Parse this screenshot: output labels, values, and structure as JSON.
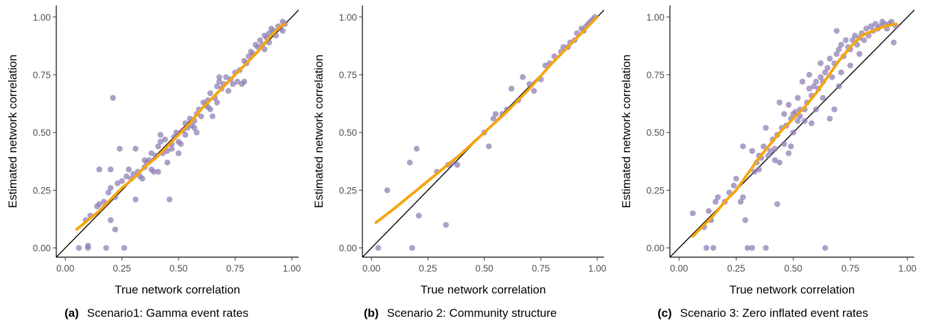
{
  "chart_data": [
    {
      "type": "scatter",
      "caption_letter": "(a)",
      "caption": "Scenario1: Gamma event rates",
      "xlabel": "True network correlation",
      "ylabel": "Estimated network correlation",
      "xlim": [
        -0.04,
        1.03
      ],
      "ylim": [
        -0.04,
        1.05
      ],
      "xticks": [
        "0.00",
        "0.25",
        "0.50",
        "0.75",
        "1.00"
      ],
      "yticks": [
        "0.00",
        "0.25",
        "0.50",
        "0.75",
        "1.00"
      ],
      "grid": false,
      "point_color": "#8e7cb3",
      "smooth_color": "#f5a511",
      "identity_line": true,
      "points": [
        [
          0.06,
          0
        ],
        [
          0.1,
          0
        ],
        [
          0.1,
          0.01
        ],
        [
          0.18,
          0
        ],
        [
          0.26,
          0
        ],
        [
          0.2,
          0.12
        ],
        [
          0.22,
          0.08
        ],
        [
          0.09,
          0.12
        ],
        [
          0.11,
          0.14
        ],
        [
          0.14,
          0.18
        ],
        [
          0.15,
          0.19
        ],
        [
          0.17,
          0.2
        ],
        [
          0.19,
          0.24
        ],
        [
          0.2,
          0.26
        ],
        [
          0.22,
          0.22
        ],
        [
          0.23,
          0.28
        ],
        [
          0.15,
          0.34
        ],
        [
          0.2,
          0.34
        ],
        [
          0.24,
          0.43
        ],
        [
          0.21,
          0.65
        ],
        [
          0.25,
          0.29
        ],
        [
          0.27,
          0.31
        ],
        [
          0.28,
          0.34
        ],
        [
          0.29,
          0.3
        ],
        [
          0.3,
          0.32
        ],
        [
          0.31,
          0.21
        ],
        [
          0.31,
          0.43
        ],
        [
          0.32,
          0.33
        ],
        [
          0.33,
          0.31
        ],
        [
          0.34,
          0.3
        ],
        [
          0.35,
          0.35
        ],
        [
          0.36,
          0.37
        ],
        [
          0.37,
          0.38
        ],
        [
          0.38,
          0.41
        ],
        [
          0.38,
          0.34
        ],
        [
          0.39,
          0.33
        ],
        [
          0.4,
          0.4
        ],
        [
          0.41,
          0.33
        ],
        [
          0.41,
          0.44
        ],
        [
          0.42,
          0.46
        ],
        [
          0.42,
          0.49
        ],
        [
          0.43,
          0.41
        ],
        [
          0.44,
          0.47
        ],
        [
          0.45,
          0.42
        ],
        [
          0.45,
          0.37
        ],
        [
          0.46,
          0.21
        ],
        [
          0.47,
          0.45
        ],
        [
          0.48,
          0.48
        ],
        [
          0.49,
          0.5
        ],
        [
          0.5,
          0.41
        ],
        [
          0.5,
          0.46
        ],
        [
          0.51,
          0.45
        ],
        [
          0.52,
          0.51
        ],
        [
          0.53,
          0.54
        ],
        [
          0.54,
          0.52
        ],
        [
          0.55,
          0.56
        ],
        [
          0.56,
          0.53
        ],
        [
          0.57,
          0.55
        ],
        [
          0.58,
          0.5
        ],
        [
          0.58,
          0.58
        ],
        [
          0.59,
          0.6
        ],
        [
          0.6,
          0.57
        ],
        [
          0.61,
          0.63
        ],
        [
          0.62,
          0.62
        ],
        [
          0.63,
          0.61
        ],
        [
          0.64,
          0.67
        ],
        [
          0.64,
          0.6
        ],
        [
          0.65,
          0.57
        ],
        [
          0.66,
          0.65
        ],
        [
          0.67,
          0.7
        ],
        [
          0.67,
          0.63
        ],
        [
          0.68,
          0.72
        ],
        [
          0.69,
          0.69
        ],
        [
          0.7,
          0.71
        ],
        [
          0.71,
          0.74
        ],
        [
          0.72,
          0.68
        ],
        [
          0.73,
          0.73
        ],
        [
          0.74,
          0.71
        ],
        [
          0.75,
          0.76
        ],
        [
          0.76,
          0.72
        ],
        [
          0.77,
          0.77
        ],
        [
          0.78,
          0.71
        ],
        [
          0.79,
          0.72
        ],
        [
          0.79,
          0.81
        ],
        [
          0.8,
          0.8
        ],
        [
          0.81,
          0.83
        ],
        [
          0.82,
          0.85
        ],
        [
          0.83,
          0.84
        ],
        [
          0.84,
          0.88
        ],
        [
          0.85,
          0.87
        ],
        [
          0.86,
          0.9
        ],
        [
          0.87,
          0.88
        ],
        [
          0.88,
          0.92
        ],
        [
          0.88,
          0.86
        ],
        [
          0.89,
          0.91
        ],
        [
          0.9,
          0.93
        ],
        [
          0.9,
          0.89
        ],
        [
          0.91,
          0.95
        ],
        [
          0.92,
          0.94
        ],
        [
          0.93,
          0.92
        ],
        [
          0.94,
          0.96
        ],
        [
          0.95,
          0.95
        ],
        [
          0.96,
          0.98
        ],
        [
          0.97,
          0.97
        ],
        [
          0.96,
          0.94
        ],
        [
          0.68,
          0.74
        ],
        [
          0.63,
          0.64
        ],
        [
          0.57,
          0.52
        ],
        [
          0.53,
          0.49
        ],
        [
          0.47,
          0.43
        ],
        [
          0.35,
          0.38
        ]
      ],
      "smooth": [
        [
          0.05,
          0.08
        ],
        [
          0.1,
          0.12
        ],
        [
          0.15,
          0.16
        ],
        [
          0.2,
          0.21
        ],
        [
          0.25,
          0.26
        ],
        [
          0.3,
          0.3
        ],
        [
          0.35,
          0.35
        ],
        [
          0.4,
          0.39
        ],
        [
          0.45,
          0.44
        ],
        [
          0.5,
          0.49
        ],
        [
          0.55,
          0.54
        ],
        [
          0.6,
          0.6
        ],
        [
          0.65,
          0.65
        ],
        [
          0.7,
          0.7
        ],
        [
          0.75,
          0.75
        ],
        [
          0.8,
          0.8
        ],
        [
          0.85,
          0.85
        ],
        [
          0.9,
          0.91
        ],
        [
          0.95,
          0.96
        ],
        [
          0.97,
          0.97
        ]
      ]
    },
    {
      "type": "scatter",
      "caption_letter": "(b)",
      "caption": "Scenario 2: Community structure",
      "xlabel": "True network correlation",
      "ylabel": "Estimated network correlation",
      "xlim": [
        -0.04,
        1.03
      ],
      "ylim": [
        -0.04,
        1.05
      ],
      "xticks": [
        "0.00",
        "0.25",
        "0.50",
        "0.75",
        "1.00"
      ],
      "yticks": [
        "0.00",
        "0.25",
        "0.50",
        "0.75",
        "1.00"
      ],
      "grid": false,
      "point_color": "#8e7cb3",
      "smooth_color": "#f5a511",
      "identity_line": true,
      "points": [
        [
          0.03,
          0
        ],
        [
          0.07,
          0.25
        ],
        [
          0.17,
          0.37
        ],
        [
          0.18,
          0
        ],
        [
          0.2,
          0.43
        ],
        [
          0.21,
          0.14
        ],
        [
          0.29,
          0.33
        ],
        [
          0.33,
          0.1
        ],
        [
          0.34,
          0.36
        ],
        [
          0.36,
          0.37
        ],
        [
          0.38,
          0.36
        ],
        [
          0.5,
          0.5
        ],
        [
          0.52,
          0.44
        ],
        [
          0.54,
          0.56
        ],
        [
          0.55,
          0.58
        ],
        [
          0.58,
          0.58
        ],
        [
          0.62,
          0.69
        ],
        [
          0.65,
          0.64
        ],
        [
          0.67,
          0.74
        ],
        [
          0.7,
          0.71
        ],
        [
          0.72,
          0.68
        ],
        [
          0.75,
          0.73
        ],
        [
          0.77,
          0.79
        ],
        [
          0.79,
          0.8
        ],
        [
          0.81,
          0.83
        ],
        [
          0.84,
          0.85
        ],
        [
          0.85,
          0.87
        ],
        [
          0.87,
          0.87
        ],
        [
          0.88,
          0.89
        ],
        [
          0.9,
          0.9
        ],
        [
          0.91,
          0.93
        ],
        [
          0.93,
          0.95
        ],
        [
          0.94,
          0.94
        ],
        [
          0.95,
          0.96
        ],
        [
          0.96,
          0.97
        ],
        [
          0.98,
          0.99
        ],
        [
          0.99,
          1.0
        ],
        [
          0.97,
          0.98
        ],
        [
          0.6,
          0.6
        ]
      ],
      "smooth": [
        [
          0.02,
          0.11
        ],
        [
          0.1,
          0.17
        ],
        [
          0.2,
          0.25
        ],
        [
          0.3,
          0.33
        ],
        [
          0.4,
          0.41
        ],
        [
          0.5,
          0.5
        ],
        [
          0.6,
          0.59
        ],
        [
          0.7,
          0.69
        ],
        [
          0.8,
          0.8
        ],
        [
          0.9,
          0.9
        ],
        [
          1.0,
          1.0
        ]
      ]
    },
    {
      "type": "scatter",
      "caption_letter": "(c)",
      "caption": "Scenario 3: Zero inflated event rates",
      "xlabel": "True network correlation",
      "ylabel": "Estimated network correlation",
      "xlim": [
        -0.04,
        1.03
      ],
      "ylim": [
        -0.04,
        1.05
      ],
      "xticks": [
        "0.00",
        "0.25",
        "0.50",
        "0.75",
        "1.00"
      ],
      "yticks": [
        "0.00",
        "0.25",
        "0.50",
        "0.75",
        "1.00"
      ],
      "grid": false,
      "point_color": "#8e7cb3",
      "smooth_color": "#f5a511",
      "identity_line": true,
      "points": [
        [
          0.06,
          0.15
        ],
        [
          0.11,
          0.09
        ],
        [
          0.12,
          0
        ],
        [
          0.15,
          0
        ],
        [
          0.13,
          0.16
        ],
        [
          0.16,
          0.2
        ],
        [
          0.17,
          0.22
        ],
        [
          0.14,
          0.12
        ],
        [
          0.2,
          0.2
        ],
        [
          0.22,
          0.24
        ],
        [
          0.24,
          0.27
        ],
        [
          0.25,
          0.3
        ],
        [
          0.27,
          0.2
        ],
        [
          0.28,
          0.22
        ],
        [
          0.28,
          0.44
        ],
        [
          0.29,
          0.12
        ],
        [
          0.3,
          0
        ],
        [
          0.32,
          0
        ],
        [
          0.32,
          0.42
        ],
        [
          0.33,
          0.33
        ],
        [
          0.34,
          0.37
        ],
        [
          0.35,
          0.34
        ],
        [
          0.36,
          0.39
        ],
        [
          0.37,
          0.44
        ],
        [
          0.38,
          0
        ],
        [
          0.38,
          0.52
        ],
        [
          0.39,
          0.4
        ],
        [
          0.4,
          0.42
        ],
        [
          0.41,
          0.47
        ],
        [
          0.42,
          0.43
        ],
        [
          0.43,
          0.49
        ],
        [
          0.43,
          0.19
        ],
        [
          0.44,
          0.37
        ],
        [
          0.44,
          0.63
        ],
        [
          0.45,
          0.52
        ],
        [
          0.46,
          0.45
        ],
        [
          0.46,
          0.58
        ],
        [
          0.47,
          0.53
        ],
        [
          0.48,
          0.62
        ],
        [
          0.48,
          0.41
        ],
        [
          0.49,
          0.56
        ],
        [
          0.5,
          0.58
        ],
        [
          0.5,
          0.5
        ],
        [
          0.51,
          0.59
        ],
        [
          0.52,
          0.55
        ],
        [
          0.52,
          0.65
        ],
        [
          0.53,
          0.57
        ],
        [
          0.54,
          0.72
        ],
        [
          0.55,
          0.6
        ],
        [
          0.55,
          0.55
        ],
        [
          0.56,
          0.63
        ],
        [
          0.57,
          0.69
        ],
        [
          0.57,
          0.75
        ],
        [
          0.58,
          0.66
        ],
        [
          0.59,
          0.7
        ],
        [
          0.6,
          0.72
        ],
        [
          0.6,
          0.6
        ],
        [
          0.61,
          0.69
        ],
        [
          0.62,
          0.74
        ],
        [
          0.62,
          0.8
        ],
        [
          0.63,
          0.72
        ],
        [
          0.63,
          0.65
        ],
        [
          0.64,
          0.76
        ],
        [
          0.64,
          0
        ],
        [
          0.65,
          0.78
        ],
        [
          0.66,
          0.82
        ],
        [
          0.66,
          0.56
        ],
        [
          0.67,
          0.74
        ],
        [
          0.68,
          0.8
        ],
        [
          0.68,
          0.6
        ],
        [
          0.69,
          0.84
        ],
        [
          0.69,
          0.94
        ],
        [
          0.7,
          0.86
        ],
        [
          0.7,
          0.7
        ],
        [
          0.71,
          0.88
        ],
        [
          0.72,
          0.83
        ],
        [
          0.73,
          0.9
        ],
        [
          0.74,
          0.87
        ],
        [
          0.75,
          0.86
        ],
        [
          0.75,
          0.79
        ],
        [
          0.76,
          0.9
        ],
        [
          0.77,
          0.92
        ],
        [
          0.78,
          0.88
        ],
        [
          0.79,
          0.91
        ],
        [
          0.8,
          0.93
        ],
        [
          0.81,
          0.9
        ],
        [
          0.82,
          0.95
        ],
        [
          0.83,
          0.92
        ],
        [
          0.84,
          0.96
        ],
        [
          0.85,
          0.94
        ],
        [
          0.86,
          0.97
        ],
        [
          0.87,
          0.95
        ],
        [
          0.88,
          0.96
        ],
        [
          0.89,
          0.98
        ],
        [
          0.9,
          0.97
        ],
        [
          0.91,
          0.95
        ],
        [
          0.92,
          0.97
        ],
        [
          0.93,
          0.98
        ],
        [
          0.94,
          0.89
        ],
        [
          0.95,
          0.96
        ],
        [
          0.58,
          0.54
        ],
        [
          0.53,
          0.6
        ],
        [
          0.71,
          0.76
        ],
        [
          0.79,
          0.84
        ],
        [
          0.35,
          0.4
        ],
        [
          0.42,
          0.38
        ],
        [
          0.49,
          0.44
        ]
      ],
      "smooth": [
        [
          0.06,
          0.05
        ],
        [
          0.1,
          0.09
        ],
        [
          0.15,
          0.14
        ],
        [
          0.2,
          0.2
        ],
        [
          0.25,
          0.25
        ],
        [
          0.3,
          0.32
        ],
        [
          0.35,
          0.39
        ],
        [
          0.4,
          0.45
        ],
        [
          0.45,
          0.51
        ],
        [
          0.5,
          0.56
        ],
        [
          0.55,
          0.61
        ],
        [
          0.6,
          0.67
        ],
        [
          0.65,
          0.74
        ],
        [
          0.7,
          0.81
        ],
        [
          0.75,
          0.87
        ],
        [
          0.8,
          0.92
        ],
        [
          0.85,
          0.94
        ],
        [
          0.9,
          0.96
        ],
        [
          0.95,
          0.97
        ]
      ]
    }
  ]
}
